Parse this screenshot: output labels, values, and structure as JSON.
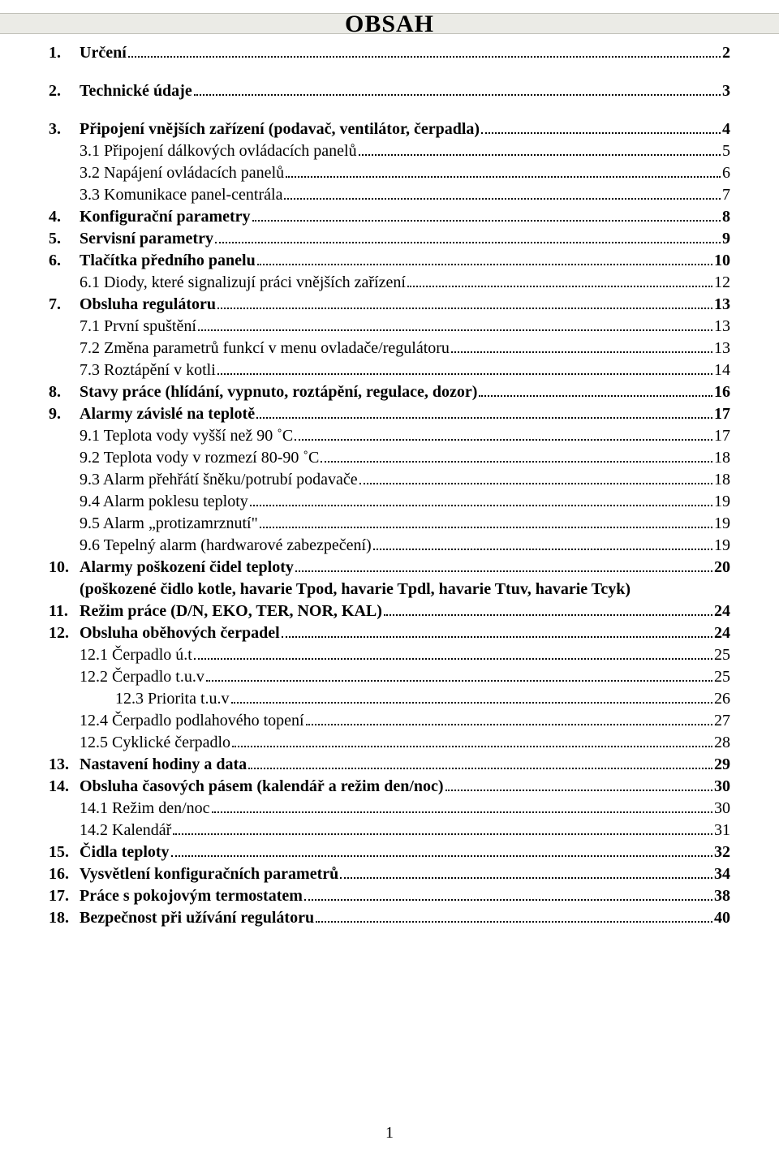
{
  "title": "OBSAH",
  "page_number": "1",
  "colors": {
    "text": "#000000",
    "background": "#ffffff",
    "title_bar_bg": "#ebebe6",
    "title_bar_border": "#c0c0b8"
  },
  "typography": {
    "body_font": "Times New Roman",
    "body_size_pt": 15,
    "title_size_pt": 22,
    "title_weight": "bold"
  },
  "entries": [
    {
      "idx": "1.",
      "label": "Určení",
      "page": "2",
      "level": 0,
      "bold": true,
      "space_after": true
    },
    {
      "idx": "2.",
      "label": "Technické údaje",
      "page": "3",
      "level": 0,
      "bold": true,
      "space_after": true
    },
    {
      "idx": "3.",
      "label": "Připojení vnějších zařízení (podavač, ventilátor, čerpadla)",
      "page": "4",
      "level": 0,
      "bold": true,
      "space_after": false
    },
    {
      "idx": "",
      "label": "3.1 Připojení dálkových ovládacích panelů",
      "page": " 5",
      "level": 1,
      "bold": false,
      "space_after": false
    },
    {
      "idx": "",
      "label": "3.2 Napájení ovládacích panelů",
      "page": " 6",
      "level": 1,
      "bold": false,
      "space_after": false
    },
    {
      "idx": "",
      "label": "3.3 Komunikace panel-centrála",
      "page": "7",
      "level": 1,
      "bold": false,
      "space_after": false
    },
    {
      "idx": "4.",
      "label": "Konfigurační parametry",
      "page": "8",
      "level": 0,
      "bold": true,
      "space_after": false
    },
    {
      "idx": "5.",
      "label": "Servisní parametry",
      "page": "9",
      "level": 0,
      "bold": true,
      "space_after": false
    },
    {
      "idx": "6.",
      "label": "Tlačítka předního panelu",
      "page": "10",
      "level": 0,
      "bold": true,
      "space_after": false
    },
    {
      "idx": "",
      "label": "6.1 Diody, které signalizují práci vnějších zařízení",
      "page": "12",
      "level": 1,
      "bold": false,
      "space_after": false
    },
    {
      "idx": "7.",
      "label": "Obsluha regulátoru",
      "page": "13",
      "level": 0,
      "bold": true,
      "space_after": false
    },
    {
      "idx": "",
      "label": "7.1 První spuštění",
      "page": "13",
      "level": 1,
      "bold": false,
      "space_after": false
    },
    {
      "idx": "",
      "label": "7.2 Změna parametrů funkcí v menu ovladače/regulátoru",
      "page": " 13",
      "level": 1,
      "bold": false,
      "space_after": false
    },
    {
      "idx": "",
      "label": "7.3 Roztápění v kotli",
      "page": "14",
      "level": 1,
      "bold": false,
      "space_after": false
    },
    {
      "idx": "8.",
      "label": "Stavy práce (hlídání, vypnuto, roztápění, regulace, dozor)",
      "page": "16",
      "level": 0,
      "bold": true,
      "space_after": false
    },
    {
      "idx": "9.",
      "label": "Alarmy závislé na teplotě",
      "page": "17",
      "level": 0,
      "bold": true,
      "space_after": false
    },
    {
      "idx": "",
      "label": "9.1 Teplota vody vyšší než  90 ˚C",
      "page": "17",
      "level": 1,
      "bold": false,
      "space_after": false
    },
    {
      "idx": "",
      "label": "9.2 Teplota vody v rozmezí 80-90 ˚C",
      "page": "18",
      "level": 1,
      "bold": false,
      "space_after": false
    },
    {
      "idx": "",
      "label": "9.3 Alarm přehřátí šněku/potrubí podavače ",
      "page": "18",
      "level": 1,
      "bold": false,
      "space_after": false
    },
    {
      "idx": "",
      "label": "9.4 Alarm poklesu teploty ",
      "page": "19",
      "level": 1,
      "bold": false,
      "space_after": false
    },
    {
      "idx": "",
      "label": "9.5 Alarm „protizamrznutí\" ",
      "page": "19",
      "level": 1,
      "bold": false,
      "space_after": false
    },
    {
      "idx": "",
      "label": "9.6 Tepelný alarm (hardwarové zabezpečení)",
      "page": "19",
      "level": 1,
      "bold": false,
      "space_after": false
    },
    {
      "idx": "10.",
      "label": "Alarmy poškození čidel teploty",
      "page": "20",
      "level": 0,
      "bold": true,
      "space_after": false
    },
    {
      "idx": "",
      "label": "(poškozené čidlo kotle, havarie Tpod, havarie Tpdl, havarie Ttuv, havarie Tcyk)",
      "page": "",
      "level": 1,
      "bold": true,
      "space_after": false,
      "no_dots": true
    },
    {
      "idx": "11.",
      "label": "Režim práce (D/N, EKO, TER, NOR, KAL)",
      "page": " 24",
      "level": 0,
      "bold": true,
      "space_after": false
    },
    {
      "idx": "12.",
      "label": "Obsluha oběhových čerpadel",
      "page": " 24",
      "level": 0,
      "bold": true,
      "space_after": false
    },
    {
      "idx": "",
      "label": "12.1 Čerpadlo ú.t",
      "page": "25",
      "level": 1,
      "bold": false,
      "space_after": false
    },
    {
      "idx": "",
      "label": "12.2 Čerpadlo t.u.v",
      "page": " 25",
      "level": 1,
      "bold": false,
      "space_after": false
    },
    {
      "idx": "",
      "label": "12.3 Priorita t.u.v",
      "page": "26",
      "level": 2,
      "bold": false,
      "space_after": false
    },
    {
      "idx": "",
      "label": "12.4 Čerpadlo podlahového topení",
      "page": "27",
      "level": 1,
      "bold": false,
      "space_after": false
    },
    {
      "idx": "",
      "label": "12.5 Cyklické čerpadlo",
      "page": "28",
      "level": 1,
      "bold": false,
      "space_after": false
    },
    {
      "idx": "13.",
      "label": "Nastavení hodiny a data",
      "page": "29",
      "level": 0,
      "bold": true,
      "space_after": false
    },
    {
      "idx": "14.",
      "label": "Obsluha časových pásem (kalendář a režim den/noc)",
      "page": "30",
      "level": 0,
      "bold": true,
      "space_after": false
    },
    {
      "idx": "",
      "label": "14.1 Režim den/noc",
      "page": "30",
      "level": 1,
      "bold": false,
      "space_after": false
    },
    {
      "idx": "",
      "label": "14.2 Kalendář",
      "page": "31",
      "level": 1,
      "bold": false,
      "space_after": false
    },
    {
      "idx": "15.",
      "label": "Čidla teploty",
      "page": "32",
      "level": 0,
      "bold": true,
      "space_after": false
    },
    {
      "idx": "16.",
      "label": "Vysvětlení konfiguračních parametrů",
      "page": "34",
      "level": 0,
      "bold": true,
      "space_after": false
    },
    {
      "idx": "17.",
      "label": "Práce s pokojovým termostatem",
      "page": " 38",
      "level": 0,
      "bold": true,
      "space_after": false
    },
    {
      "idx": "18.",
      "label": "Bezpečnost při užívání regulátoru",
      "page": "40",
      "level": 0,
      "bold": true,
      "space_after": false
    }
  ]
}
